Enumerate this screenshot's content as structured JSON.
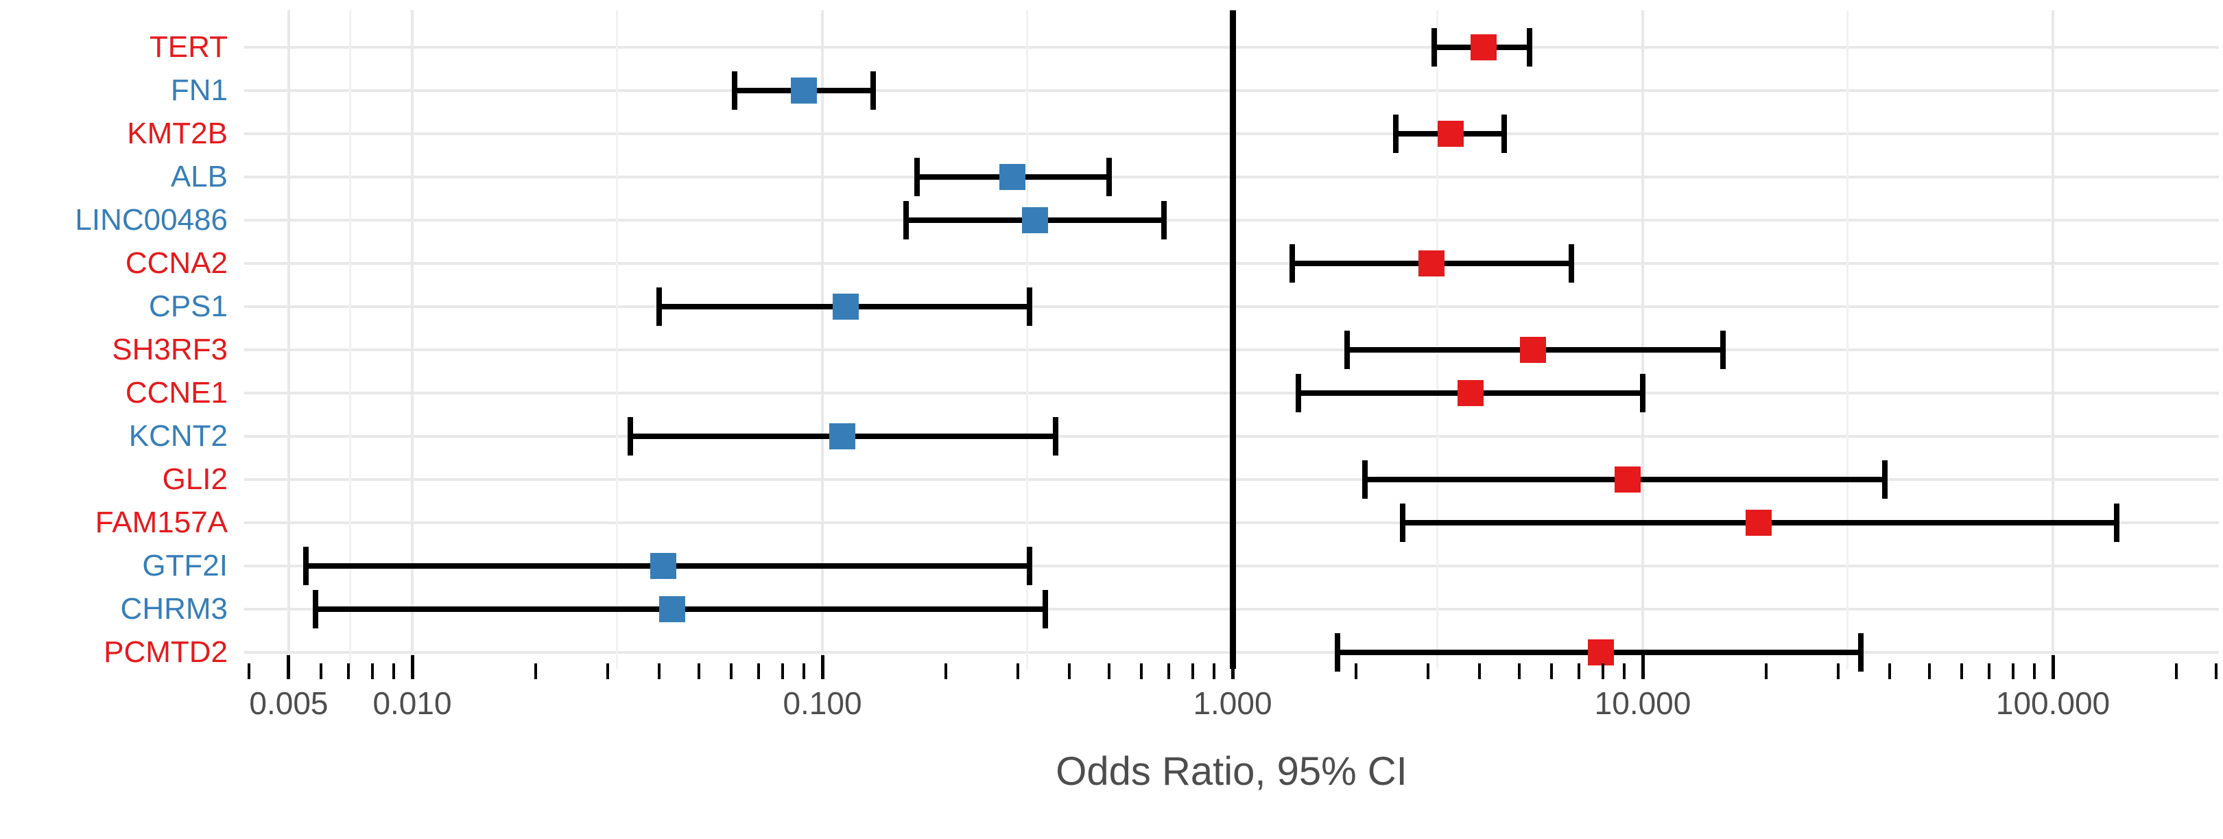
{
  "figure": {
    "xlabel": "Odds Ratio, 95% CI",
    "background": "#ffffff"
  },
  "colors": {
    "risk": "#e41a1c",
    "protective": "#377eb8",
    "axis_text": "#4d4d4d",
    "grid_major": "#e8e8e8",
    "grid_minor": "#f1f1f1",
    "reference_line": "#000000",
    "error_bar": "#000000"
  },
  "chart_data": {
    "type": "scatter",
    "subtype": "forest_plot",
    "title": "",
    "xlabel": "Odds Ratio, 95% CI",
    "x_scale": "log10",
    "x_range": [
      0.0039,
      254
    ],
    "grid": true,
    "legend_position": "none",
    "reference_line": 1.0,
    "x_major_ticks": [
      0.005,
      0.01,
      0.1,
      1,
      10,
      100
    ],
    "x_major_tick_labels": [
      "0.005",
      "0.010",
      "0.100",
      "1.000",
      "10.000",
      "100.000"
    ],
    "x_minor_ticks": [
      0.004,
      0.006,
      0.007,
      0.008,
      0.009,
      0.02,
      0.03,
      0.04,
      0.05,
      0.06,
      0.07,
      0.08,
      0.09,
      0.2,
      0.3,
      0.4,
      0.5,
      0.6,
      0.7,
      0.8,
      0.9,
      2,
      3,
      4,
      5,
      6,
      7,
      8,
      9,
      20,
      30,
      40,
      50,
      60,
      70,
      80,
      90,
      200,
      250
    ],
    "x_minor_gridlines": [
      0.00707,
      0.0316,
      0.316,
      3.16,
      31.6
    ],
    "rows": [
      {
        "gene": "TERT",
        "direction": "risk",
        "odds_ratio": 4.1,
        "ci_low": 3.1,
        "ci_high": 5.3
      },
      {
        "gene": "FN1",
        "direction": "protective",
        "odds_ratio": 0.09,
        "ci_low": 0.061,
        "ci_high": 0.133
      },
      {
        "gene": "KMT2B",
        "direction": "risk",
        "odds_ratio": 3.4,
        "ci_low": 2.5,
        "ci_high": 4.6
      },
      {
        "gene": "ALB",
        "direction": "protective",
        "odds_ratio": 0.29,
        "ci_low": 0.17,
        "ci_high": 0.5
      },
      {
        "gene": "LINC00486",
        "direction": "protective",
        "odds_ratio": 0.33,
        "ci_low": 0.16,
        "ci_high": 0.68
      },
      {
        "gene": "CCNA2",
        "direction": "risk",
        "odds_ratio": 3.05,
        "ci_low": 1.4,
        "ci_high": 6.7
      },
      {
        "gene": "CPS1",
        "direction": "protective",
        "odds_ratio": 0.114,
        "ci_low": 0.04,
        "ci_high": 0.32
      },
      {
        "gene": "SH3RF3",
        "direction": "risk",
        "odds_ratio": 5.4,
        "ci_low": 1.9,
        "ci_high": 15.7
      },
      {
        "gene": "CCNE1",
        "direction": "risk",
        "odds_ratio": 3.8,
        "ci_low": 1.45,
        "ci_high": 10.0
      },
      {
        "gene": "KCNT2",
        "direction": "protective",
        "odds_ratio": 0.112,
        "ci_low": 0.034,
        "ci_high": 0.37
      },
      {
        "gene": "GLI2",
        "direction": "risk",
        "odds_ratio": 9.2,
        "ci_low": 2.1,
        "ci_high": 39.0
      },
      {
        "gene": "FAM157A",
        "direction": "risk",
        "odds_ratio": 19.2,
        "ci_low": 2.6,
        "ci_high": 143.0
      },
      {
        "gene": "GTF2I",
        "direction": "protective",
        "odds_ratio": 0.041,
        "ci_low": 0.0055,
        "ci_high": 0.32
      },
      {
        "gene": "CHRM3",
        "direction": "protective",
        "odds_ratio": 0.043,
        "ci_low": 0.0058,
        "ci_high": 0.35
      },
      {
        "gene": "PCMTD2",
        "direction": "risk",
        "odds_ratio": 7.9,
        "ci_low": 1.8,
        "ci_high": 34.0
      }
    ]
  }
}
